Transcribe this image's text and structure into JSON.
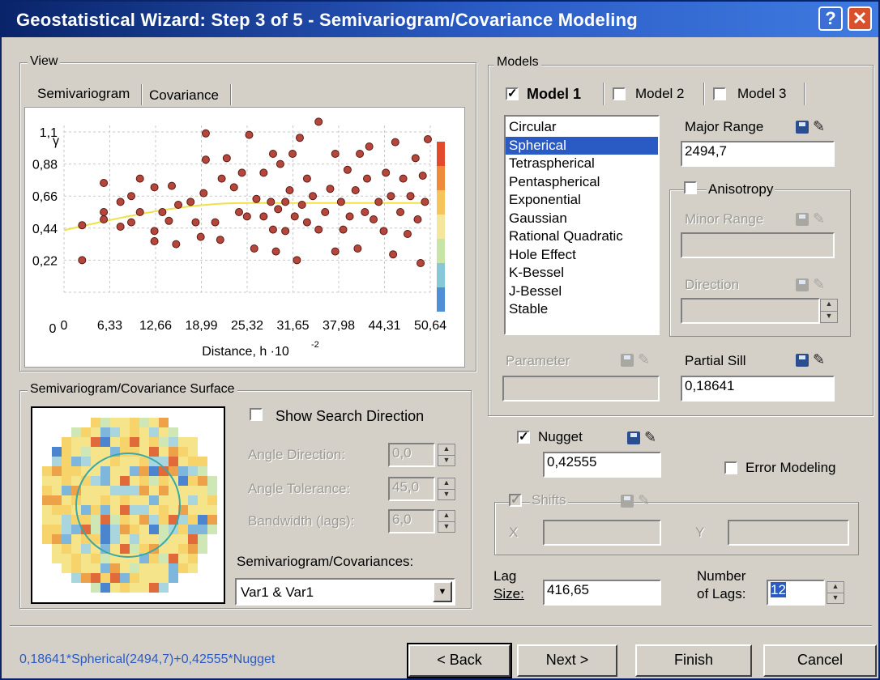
{
  "window": {
    "title": "Geostatistical Wizard: Step 3 of 5 - Semivariogram/Covariance Modeling",
    "help_label": "?",
    "close_label": "✕"
  },
  "view": {
    "group_label": "View",
    "tabs": [
      "Semivariogram",
      "Covariance"
    ],
    "active_tab": "Semivariogram"
  },
  "chart_data": {
    "type": "scatter",
    "title": "",
    "y_symbol": "γ",
    "xlabel": "Distance, h ·10",
    "xlabel_exp": "-2",
    "x_ticks": [
      "0",
      "6,33",
      "12,66",
      "18,99",
      "25,32",
      "31,65",
      "37,98",
      "44,31",
      "50,64"
    ],
    "y_ticks": [
      "0,22",
      "0,44",
      "0,66",
      "0,88",
      "1,1"
    ],
    "xlim": [
      0,
      50.64
    ],
    "ylim": [
      0,
      1.2
    ],
    "grid": true,
    "model_curve": {
      "name": "",
      "nugget": 0.42555,
      "partial_sill": 0.18641,
      "range": 24.947
    },
    "points": [
      [
        2.5,
        0.22
      ],
      [
        2.5,
        0.46
      ],
      [
        5.5,
        0.5
      ],
      [
        5.5,
        0.55
      ],
      [
        5.5,
        0.75
      ],
      [
        7.8,
        0.62
      ],
      [
        7.8,
        0.45
      ],
      [
        9.3,
        0.66
      ],
      [
        9.3,
        0.48
      ],
      [
        10.5,
        0.55
      ],
      [
        10.5,
        0.78
      ],
      [
        12.5,
        0.35
      ],
      [
        12.5,
        0.42
      ],
      [
        12.5,
        0.72
      ],
      [
        13.6,
        0.55
      ],
      [
        14.5,
        0.49
      ],
      [
        14.9,
        0.73
      ],
      [
        15.5,
        0.33
      ],
      [
        15.8,
        0.6
      ],
      [
        17.5,
        0.62
      ],
      [
        18.2,
        0.48
      ],
      [
        18.9,
        0.38
      ],
      [
        19.3,
        0.68
      ],
      [
        19.6,
        0.91
      ],
      [
        19.6,
        1.09
      ],
      [
        20.9,
        0.48
      ],
      [
        21.6,
        0.36
      ],
      [
        21.8,
        0.78
      ],
      [
        22.5,
        0.92
      ],
      [
        23.5,
        0.72
      ],
      [
        24.2,
        0.55
      ],
      [
        24.6,
        0.82
      ],
      [
        25.3,
        0.52
      ],
      [
        25.6,
        1.08
      ],
      [
        26.3,
        0.3
      ],
      [
        26.6,
        0.64
      ],
      [
        27.6,
        0.52
      ],
      [
        27.6,
        0.82
      ],
      [
        28.6,
        0.62
      ],
      [
        28.9,
        0.95
      ],
      [
        28.9,
        0.43
      ],
      [
        29.3,
        0.28
      ],
      [
        29.6,
        0.57
      ],
      [
        29.9,
        0.88
      ],
      [
        30.6,
        0.62
      ],
      [
        30.6,
        0.42
      ],
      [
        31.2,
        0.7
      ],
      [
        31.6,
        0.95
      ],
      [
        31.9,
        0.52
      ],
      [
        32.2,
        0.22
      ],
      [
        32.6,
        1.06
      ],
      [
        32.9,
        0.6
      ],
      [
        33.6,
        0.48
      ],
      [
        33.6,
        0.78
      ],
      [
        34.4,
        0.66
      ],
      [
        35.2,
        0.43
      ],
      [
        35.2,
        1.17
      ],
      [
        36.1,
        0.55
      ],
      [
        36.8,
        0.71
      ],
      [
        37.5,
        0.28
      ],
      [
        37.5,
        0.95
      ],
      [
        38.3,
        0.62
      ],
      [
        38.6,
        0.43
      ],
      [
        39.2,
        0.84
      ],
      [
        39.5,
        0.52
      ],
      [
        40.3,
        0.7
      ],
      [
        40.6,
        0.3
      ],
      [
        40.9,
        0.95
      ],
      [
        41.6,
        0.55
      ],
      [
        41.9,
        0.78
      ],
      [
        42.2,
        1.0
      ],
      [
        42.8,
        0.5
      ],
      [
        43.5,
        0.62
      ],
      [
        44.2,
        0.42
      ],
      [
        44.5,
        0.82
      ],
      [
        45.2,
        0.66
      ],
      [
        45.5,
        0.26
      ],
      [
        45.8,
        1.03
      ],
      [
        46.5,
        0.55
      ],
      [
        46.9,
        0.78
      ],
      [
        47.5,
        0.4
      ],
      [
        47.9,
        0.66
      ],
      [
        48.6,
        0.92
      ],
      [
        48.9,
        0.5
      ],
      [
        49.3,
        0.2
      ],
      [
        49.6,
        0.8
      ],
      [
        49.9,
        0.62
      ],
      [
        50.3,
        1.05
      ]
    ]
  },
  "surface": {
    "group_label": "Semivariogram/Covariance Surface",
    "show_search_direction_label": "Show Search Direction",
    "angle_direction_label": "Angle Direction:",
    "angle_direction_value": "0,0",
    "angle_tolerance_label": "Angle Tolerance:",
    "angle_tolerance_value": "45,0",
    "bandwidth_label": "Bandwidth (lags):",
    "bandwidth_value": "6,0",
    "semivariogram_covariances_label": "Semivariogram/Covariances:",
    "variable_pair_value": "Var1 & Var1"
  },
  "models": {
    "group_label": "Models",
    "tabs": [
      "Model 1",
      "Model 2",
      "Model 3"
    ],
    "model_types": [
      "Circular",
      "Spherical",
      "Tetraspherical",
      "Pentaspherical",
      "Exponential",
      "Gaussian",
      "Rational Quadratic",
      "Hole Effect",
      "K-Bessel",
      "J-Bessel",
      "Stable"
    ],
    "selected_model": "Spherical",
    "major_range_label": "Major Range",
    "major_range_value": "2494,7",
    "anisotropy_label": "Anisotropy",
    "minor_range_label": "Minor Range",
    "direction_label": "Direction",
    "parameter_label": "Parameter",
    "partial_sill_label": "Partial Sill",
    "partial_sill_value": "0,18641"
  },
  "nugget": {
    "label": "Nugget",
    "value": "0,42555",
    "error_modeling_label": "Error Modeling",
    "shifts_label": "Shifts",
    "x_label": "X",
    "y_label": "Y"
  },
  "lags": {
    "lag_size_label_1": "Lag",
    "lag_size_label_2": "Size:",
    "lag_size_value": "416,65",
    "num_lags_label_1": "Number",
    "num_lags_label_2": "of Lags:",
    "num_lags_value": "12"
  },
  "status": {
    "formula": "0,18641*Spherical(2494,7)+0,42555*Nugget"
  },
  "buttons": {
    "back": "< Back",
    "next": "Next >",
    "finish": "Finish",
    "cancel": "Cancel"
  }
}
